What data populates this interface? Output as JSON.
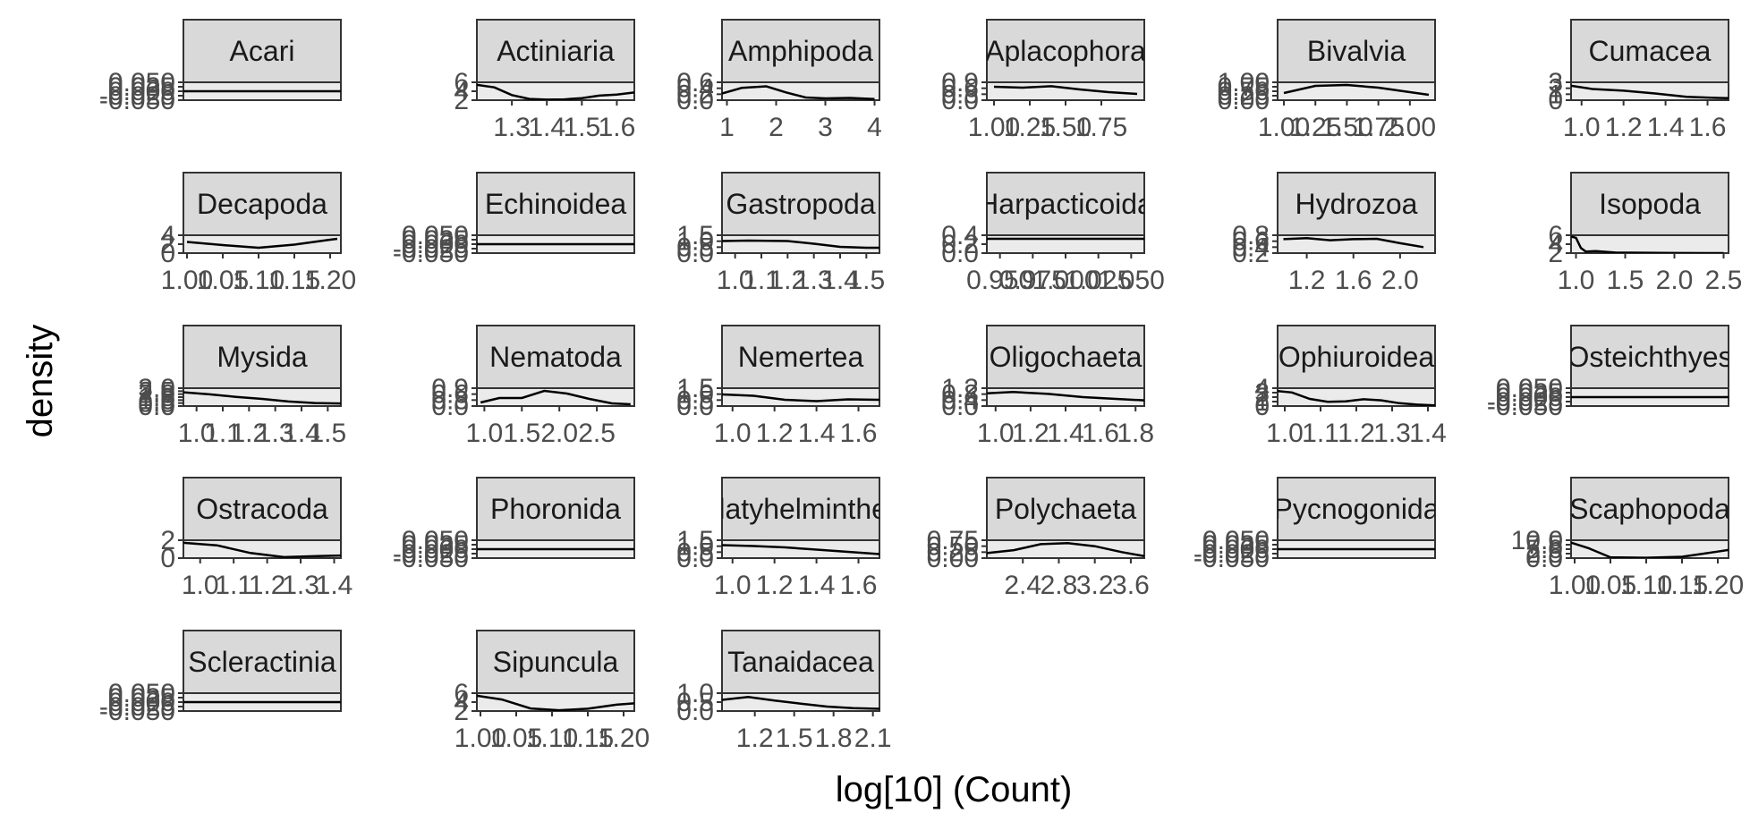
{
  "chart_data": {
    "type": "line",
    "subtype": "faceted-density",
    "xlabel": "log[10] (Count)",
    "ylabel": "density",
    "colors": {
      "strip": "#d9d9d9",
      "panel_bg": "#ebebeb",
      "border": "#333333",
      "line": "#000000",
      "tick_text": "#4d4d4d"
    },
    "facets": [
      {
        "name": "Acari",
        "row": 0,
        "col": 0,
        "xlim": [
          0.95,
          1.05
        ],
        "ylim": [
          -0.06,
          0.06
        ],
        "xticks": [],
        "yticks": [
          "-0.050",
          "-0.025",
          "0.000",
          "0.025",
          "0.050"
        ],
        "curve": {
          "x": [
            0.95,
            1.05
          ],
          "y": [
            0.0,
            0.0
          ]
        }
      },
      {
        "name": "Actiniaria",
        "row": 0,
        "col": 1,
        "xlim": [
          1.2,
          1.65
        ],
        "ylim": [
          0,
          7
        ],
        "xticks": [
          "1.3",
          "1.4",
          "1.5",
          "1.6"
        ],
        "yticks": [
          "2",
          "4",
          "6"
        ],
        "curve": {
          "x": [
            1.2,
            1.25,
            1.3,
            1.35,
            1.4,
            1.45,
            1.5,
            1.55,
            1.6,
            1.65
          ],
          "y": [
            6.0,
            5.0,
            2.0,
            0.5,
            0.2,
            0.3,
            0.8,
            1.8,
            2.2,
            3.0
          ]
        }
      },
      {
        "name": "Amphipoda",
        "row": 0,
        "col": 2,
        "xlim": [
          0.9,
          4.1
        ],
        "ylim": [
          0,
          0.8
        ],
        "xticks": [
          "1",
          "2",
          "3",
          "4"
        ],
        "yticks": [
          "0.0",
          "0.2",
          "0.4",
          "0.6"
        ],
        "curve": {
          "x": [
            0.9,
            1.3,
            1.8,
            2.2,
            2.6,
            3.0,
            3.5,
            4.0
          ],
          "y": [
            0.3,
            0.55,
            0.62,
            0.35,
            0.12,
            0.08,
            0.1,
            0.05
          ]
        }
      },
      {
        "name": "Aplacophora",
        "row": 0,
        "col": 3,
        "xlim": [
          0.95,
          2.05
        ],
        "ylim": [
          0,
          1.0
        ],
        "xticks": [
          "1.00",
          "1.25",
          "1.50",
          "1.75"
        ],
        "yticks": [
          "0.0",
          "0.3",
          "0.6",
          "0.9"
        ],
        "curve": {
          "x": [
            1.0,
            1.2,
            1.4,
            1.6,
            1.8,
            2.0
          ],
          "y": [
            0.75,
            0.7,
            0.78,
            0.6,
            0.45,
            0.35
          ]
        }
      },
      {
        "name": "Bivalvia",
        "row": 0,
        "col": 4,
        "xlim": [
          0.95,
          2.2
        ],
        "ylim": [
          0,
          1.0
        ],
        "xticks": [
          "1.00",
          "1.25",
          "1.50",
          "1.75",
          "2.00"
        ],
        "yticks": [
          "0.00",
          "0.25",
          "0.50",
          "0.75",
          "1.00"
        ],
        "curve": {
          "x": [
            1.0,
            1.25,
            1.5,
            1.75,
            2.0,
            2.15
          ],
          "y": [
            0.4,
            0.8,
            0.85,
            0.7,
            0.45,
            0.3
          ]
        }
      },
      {
        "name": "Cumacea",
        "row": 0,
        "col": 5,
        "xlim": [
          0.95,
          1.7
        ],
        "ylim": [
          0,
          3.2
        ],
        "xticks": [
          "1.0",
          "1.2",
          "1.4",
          "1.6"
        ],
        "yticks": [
          "0",
          "1",
          "2",
          "3"
        ],
        "curve": {
          "x": [
            0.95,
            1.05,
            1.2,
            1.35,
            1.5,
            1.65,
            1.7
          ],
          "y": [
            2.6,
            2.0,
            1.7,
            1.2,
            0.6,
            0.4,
            0.35
          ]
        }
      },
      {
        "name": "Decapoda",
        "row": 1,
        "col": 0,
        "xlim": [
          0.995,
          1.215
        ],
        "ylim": [
          0,
          4
        ],
        "xticks": [
          "1.00",
          "1.05",
          "1.10",
          "1.15",
          "1.20"
        ],
        "yticks": [
          "0",
          "2",
          "4"
        ],
        "curve": {
          "x": [
            1.0,
            1.05,
            1.1,
            1.15,
            1.2,
            1.21
          ],
          "y": [
            2.5,
            1.8,
            1.2,
            1.9,
            3.0,
            3.2
          ]
        }
      },
      {
        "name": "Echinoidea",
        "row": 1,
        "col": 1,
        "xlim": [
          0.95,
          1.05
        ],
        "ylim": [
          -0.06,
          0.06
        ],
        "xticks": [],
        "yticks": [
          "-0.050",
          "-0.025",
          "0.000",
          "0.025",
          "0.050"
        ],
        "curve": {
          "x": [
            0.95,
            1.05
          ],
          "y": [
            0.0,
            0.0
          ]
        }
      },
      {
        "name": "Gastropoda",
        "row": 1,
        "col": 2,
        "xlim": [
          0.95,
          1.55
        ],
        "ylim": [
          0,
          2.0
        ],
        "xticks": [
          "1.0",
          "1.1",
          "1.2",
          "1.3",
          "1.4",
          "1.5"
        ],
        "yticks": [
          "0.0",
          "0.5",
          "1.0",
          "1.5"
        ],
        "curve": {
          "x": [
            0.95,
            1.05,
            1.2,
            1.3,
            1.4,
            1.5,
            1.55
          ],
          "y": [
            1.35,
            1.4,
            1.35,
            1.05,
            0.7,
            0.6,
            0.6
          ]
        }
      },
      {
        "name": "Harpacticoida",
        "row": 1,
        "col": 3,
        "xlim": [
          0.94,
          1.06
        ],
        "ylim": [
          0,
          0.5
        ],
        "xticks": [
          "0.950",
          "0.975",
          "1.000",
          "1.025",
          "1.050"
        ],
        "yticks": [
          "0.0",
          "0.2",
          "0.4"
        ],
        "curve": {
          "x": [
            0.94,
            1.0,
            1.06
          ],
          "y": [
            0.4,
            0.4,
            0.4
          ]
        }
      },
      {
        "name": "Hydrozoa",
        "row": 1,
        "col": 4,
        "xlim": [
          0.95,
          2.3
        ],
        "ylim": [
          0,
          0.9
        ],
        "xticks": [
          "1.2",
          "1.6",
          "2.0"
        ],
        "yticks": [
          "0.2",
          "0.4",
          "0.6",
          "0.8"
        ],
        "curve": {
          "x": [
            1.0,
            1.2,
            1.4,
            1.6,
            1.8,
            2.0,
            2.2
          ],
          "y": [
            0.7,
            0.75,
            0.65,
            0.7,
            0.72,
            0.5,
            0.3
          ]
        }
      },
      {
        "name": "Isopoda",
        "row": 1,
        "col": 5,
        "xlim": [
          0.95,
          2.55
        ],
        "ylim": [
          0,
          7
        ],
        "xticks": [
          "1.0",
          "1.5",
          "2.0",
          "2.5"
        ],
        "yticks": [
          "2",
          "4",
          "6"
        ],
        "curve": {
          "x": [
            0.95,
            1.0,
            1.05,
            1.1,
            1.2,
            1.4,
            2.0,
            2.5
          ],
          "y": [
            6.5,
            6.0,
            2.0,
            0.6,
            0.8,
            0.2,
            0.05,
            0.0
          ]
        }
      },
      {
        "name": "Mysida",
        "row": 2,
        "col": 0,
        "xlim": [
          0.95,
          1.55
        ],
        "ylim": [
          0,
          3.5
        ],
        "xticks": [
          "1.0",
          "1.1",
          "1.2",
          "1.3",
          "1.4",
          "1.5"
        ],
        "yticks": [
          "0.0",
          "0.5",
          "1.0",
          "1.5",
          "2.0",
          "2.5",
          "3.0"
        ],
        "curve": {
          "x": [
            0.95,
            1.05,
            1.15,
            1.25,
            1.35,
            1.45,
            1.55
          ],
          "y": [
            2.7,
            2.3,
            1.8,
            1.4,
            0.9,
            0.6,
            0.5
          ]
        }
      },
      {
        "name": "Nematoda",
        "row": 2,
        "col": 1,
        "xlim": [
          0.9,
          3.0
        ],
        "ylim": [
          0,
          1.0
        ],
        "xticks": [
          "1.0",
          "1.5",
          "2.0",
          "2.5"
        ],
        "yticks": [
          "0.0",
          "0.3",
          "0.6",
          "0.9"
        ],
        "curve": {
          "x": [
            0.95,
            1.2,
            1.5,
            1.8,
            2.1,
            2.4,
            2.7,
            2.95
          ],
          "y": [
            0.2,
            0.45,
            0.45,
            0.85,
            0.7,
            0.4,
            0.15,
            0.1
          ]
        }
      },
      {
        "name": "Nemertea",
        "row": 2,
        "col": 2,
        "xlim": [
          0.95,
          1.7
        ],
        "ylim": [
          0,
          2.0
        ],
        "xticks": [
          "1.0",
          "1.2",
          "1.4",
          "1.6"
        ],
        "yticks": [
          "0.0",
          "0.5",
          "1.0",
          "1.5"
        ],
        "curve": {
          "x": [
            0.95,
            1.1,
            1.25,
            1.4,
            1.55,
            1.7
          ],
          "y": [
            1.3,
            1.15,
            0.7,
            0.55,
            0.75,
            0.7
          ]
        }
      },
      {
        "name": "Oligochaeta",
        "row": 2,
        "col": 3,
        "xlim": [
          0.95,
          1.85
        ],
        "ylim": [
          0,
          1.4
        ],
        "xticks": [
          "1.0",
          "1.2",
          "1.4",
          "1.6",
          "1.8"
        ],
        "yticks": [
          "0.0",
          "0.4",
          "0.8",
          "1.2"
        ],
        "curve": {
          "x": [
            0.95,
            1.1,
            1.3,
            1.5,
            1.7,
            1.85
          ],
          "y": [
            1.0,
            1.1,
            0.95,
            0.7,
            0.55,
            0.45
          ]
        }
      },
      {
        "name": "Ophiuroidea",
        "row": 2,
        "col": 4,
        "xlim": [
          0.98,
          1.42
        ],
        "ylim": [
          0,
          5
        ],
        "xticks": [
          "1.0",
          "1.1",
          "1.2",
          "1.3",
          "1.4"
        ],
        "yticks": [
          "0",
          "1",
          "2",
          "3",
          "4"
        ],
        "curve": {
          "x": [
            0.98,
            1.02,
            1.07,
            1.12,
            1.17,
            1.22,
            1.27,
            1.32,
            1.37,
            1.42
          ],
          "y": [
            4.2,
            3.8,
            2.0,
            1.2,
            1.3,
            1.9,
            1.6,
            0.8,
            0.4,
            0.2
          ]
        }
      },
      {
        "name": "Osteichthyes",
        "row": 2,
        "col": 5,
        "xlim": [
          0.95,
          1.05
        ],
        "ylim": [
          -0.06,
          0.06
        ],
        "xticks": [],
        "yticks": [
          "-0.050",
          "-0.025",
          "0.000",
          "0.025",
          "0.050"
        ],
        "curve": {
          "x": [
            0.95,
            1.05
          ],
          "y": [
            0.0,
            0.0
          ]
        }
      },
      {
        "name": "Ostracoda",
        "row": 3,
        "col": 0,
        "xlim": [
          0.95,
          1.42
        ],
        "ylim": [
          0,
          3.5
        ],
        "xticks": [
          "1.0",
          "1.1",
          "1.2",
          "1.3",
          "1.4"
        ],
        "yticks": [
          "0",
          "2"
        ],
        "curve": {
          "x": [
            0.95,
            1.05,
            1.15,
            1.25,
            1.35,
            1.42
          ],
          "y": [
            3.0,
            2.5,
            1.0,
            0.2,
            0.4,
            0.5
          ]
        }
      },
      {
        "name": "Phoronida",
        "row": 3,
        "col": 1,
        "xlim": [
          0.95,
          1.05
        ],
        "ylim": [
          -0.06,
          0.06
        ],
        "xticks": [],
        "yticks": [
          "-0.050",
          "-0.025",
          "0.000",
          "0.025",
          "0.050"
        ],
        "curve": {
          "x": [
            0.95,
            1.05
          ],
          "y": [
            0.0,
            0.0
          ]
        }
      },
      {
        "name": "Platyhelminthes",
        "row": 3,
        "col": 2,
        "xlim": [
          0.95,
          1.7
        ],
        "ylim": [
          0,
          2.0
        ],
        "xticks": [
          "1.0",
          "1.2",
          "1.4",
          "1.6"
        ],
        "yticks": [
          "0.0",
          "0.5",
          "1.0",
          "1.5"
        ],
        "curve": {
          "x": [
            0.95,
            1.1,
            1.25,
            1.4,
            1.55,
            1.7
          ],
          "y": [
            1.45,
            1.35,
            1.2,
            0.95,
            0.7,
            0.45
          ]
        }
      },
      {
        "name": "Polychaeta",
        "row": 3,
        "col": 3,
        "xlim": [
          2.0,
          3.75
        ],
        "ylim": [
          0,
          0.9
        ],
        "xticks": [
          "2.4",
          "2.8",
          "3.2",
          "3.6"
        ],
        "yticks": [
          "0.00",
          "0.25",
          "0.50",
          "0.75"
        ],
        "curve": {
          "x": [
            2.0,
            2.3,
            2.6,
            2.9,
            3.2,
            3.5,
            3.75
          ],
          "y": [
            0.25,
            0.4,
            0.7,
            0.75,
            0.6,
            0.3,
            0.1
          ]
        }
      },
      {
        "name": "Pycnogonida",
        "row": 3,
        "col": 4,
        "xlim": [
          0.95,
          1.05
        ],
        "ylim": [
          -0.06,
          0.06
        ],
        "xticks": [],
        "yticks": [
          "-0.050",
          "-0.025",
          "0.000",
          "0.025",
          "0.050"
        ],
        "curve": {
          "x": [
            0.95,
            1.05
          ],
          "y": [
            0.0,
            0.0
          ]
        }
      },
      {
        "name": "Scaphopoda",
        "row": 3,
        "col": 5,
        "xlim": [
          0.995,
          1.215
        ],
        "ylim": [
          0,
          11
        ],
        "xticks": [
          "1.00",
          "1.05",
          "1.10",
          "1.15",
          "1.20"
        ],
        "yticks": [
          "0.0",
          "2.5",
          "5.0",
          "7.5",
          "10.0"
        ],
        "curve": {
          "x": [
            0.995,
            1.02,
            1.05,
            1.1,
            1.15,
            1.2,
            1.215
          ],
          "y": [
            9.5,
            6.0,
            0.5,
            0.2,
            0.8,
            4.0,
            5.0
          ]
        }
      },
      {
        "name": "Scleractinia",
        "row": 4,
        "col": 0,
        "xlim": [
          0.95,
          1.05
        ],
        "ylim": [
          -0.06,
          0.06
        ],
        "xticks": [],
        "yticks": [
          "-0.050",
          "-0.025",
          "0.000",
          "0.025",
          "0.050"
        ],
        "curve": {
          "x": [
            0.95,
            1.05
          ],
          "y": [
            0.0,
            0.0
          ]
        }
      },
      {
        "name": "Sipuncula",
        "row": 4,
        "col": 1,
        "xlim": [
          0.995,
          1.215
        ],
        "ylim": [
          0,
          7
        ],
        "xticks": [
          "1.00",
          "1.05",
          "1.10",
          "1.15",
          "1.20"
        ],
        "yticks": [
          "2",
          "4",
          "6"
        ],
        "curve": {
          "x": [
            0.995,
            1.03,
            1.07,
            1.11,
            1.15,
            1.19,
            1.215
          ],
          "y": [
            6.0,
            4.5,
            1.0,
            0.3,
            0.9,
            2.5,
            3.0
          ]
        }
      },
      {
        "name": "Tanaidacea",
        "row": 4,
        "col": 2,
        "xlim": [
          0.95,
          2.15
        ],
        "ylim": [
          0,
          1.2
        ],
        "xticks": [
          "1.2",
          "1.5",
          "1.8",
          "2.1"
        ],
        "yticks": [
          "0.0",
          "0.5",
          "1.0"
        ],
        "curve": {
          "x": [
            0.95,
            1.15,
            1.35,
            1.55,
            1.75,
            1.95,
            2.15
          ],
          "y": [
            0.75,
            0.95,
            0.7,
            0.5,
            0.3,
            0.2,
            0.15
          ]
        }
      }
    ]
  }
}
